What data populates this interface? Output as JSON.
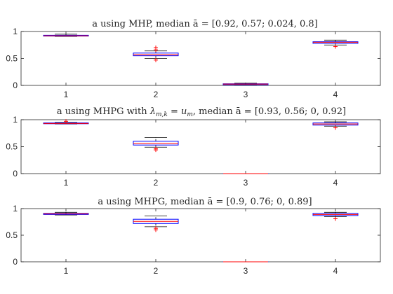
{
  "chart_data": [
    {
      "type": "box",
      "title": "a using MHP, median ā = [0.92, 0.57; 0.024, 0.8]",
      "categories": [
        "1",
        "2",
        "3",
        "4"
      ],
      "ylim": [
        0,
        1
      ],
      "yticks": [
        "0",
        "0.5",
        "1"
      ],
      "boxes": [
        {
          "whisker_low": 0.91,
          "q1": 0.915,
          "median": 0.92,
          "q3": 0.93,
          "whisker_high": 0.95,
          "outliers": []
        },
        {
          "whisker_low": 0.5,
          "q1": 0.55,
          "median": 0.57,
          "q3": 0.6,
          "whisker_high": 0.64,
          "outliers": [
            0.47,
            0.66,
            0.7
          ]
        },
        {
          "whisker_low": 0.005,
          "q1": 0.012,
          "median": 0.024,
          "q3": 0.03,
          "whisker_high": 0.04,
          "outliers": []
        },
        {
          "whisker_low": 0.75,
          "q1": 0.78,
          "median": 0.8,
          "q3": 0.81,
          "whisker_high": 0.84,
          "outliers": [
            0.72
          ]
        }
      ]
    },
    {
      "type": "box",
      "title": "a using MHPG with λm,k = um, median ā = [0.93, 0.56; 0, 0.92]",
      "title_parts": {
        "pre": "a using MHPG with ",
        "lambda": "λ",
        "lambda_sub": "m,k",
        "eq": " = ",
        "u": "u",
        "u_sub": "m",
        "post": ", median ā = [0.93, 0.56; 0, 0.92]"
      },
      "categories": [
        "1",
        "2",
        "3",
        "4"
      ],
      "ylim": [
        0,
        1
      ],
      "yticks": [
        "0",
        "0.5",
        "1"
      ],
      "boxes": [
        {
          "whisker_low": 0.92,
          "q1": 0.925,
          "median": 0.93,
          "q3": 0.94,
          "whisker_high": 0.95,
          "outliers": [
            0.97
          ]
        },
        {
          "whisker_low": 0.49,
          "q1": 0.53,
          "median": 0.56,
          "q3": 0.6,
          "whisker_high": 0.67,
          "outliers": [
            0.44,
            0.46
          ]
        },
        {
          "whisker_low": 0,
          "q1": 0,
          "median": 0,
          "q3": 0,
          "whisker_high": 0,
          "outliers": []
        },
        {
          "whisker_low": 0.88,
          "q1": 0.9,
          "median": 0.92,
          "q3": 0.94,
          "whisker_high": 0.96,
          "outliers": [
            0.85
          ]
        }
      ]
    },
    {
      "type": "box",
      "title": "a using MHPG, median ā = [0.9, 0.76; 0, 0.89]",
      "categories": [
        "1",
        "2",
        "3",
        "4"
      ],
      "ylim": [
        0,
        1
      ],
      "yticks": [
        "0",
        "0.5",
        "1"
      ],
      "boxes": [
        {
          "whisker_low": 0.88,
          "q1": 0.89,
          "median": 0.9,
          "q3": 0.91,
          "whisker_high": 0.93,
          "outliers": []
        },
        {
          "whisker_low": 0.66,
          "q1": 0.72,
          "median": 0.76,
          "q3": 0.8,
          "whisker_high": 0.86,
          "outliers": [
            0.6,
            0.63
          ]
        },
        {
          "whisker_low": 0,
          "q1": 0,
          "median": 0,
          "q3": 0,
          "whisker_high": 0,
          "outliers": []
        },
        {
          "whisker_low": 0.85,
          "q1": 0.87,
          "median": 0.89,
          "q3": 0.91,
          "whisker_high": 0.93,
          "outliers": [
            0.81
          ]
        }
      ]
    }
  ],
  "colors": {
    "box": "#0000ff",
    "median": "#ff0000",
    "whisker": "#000000",
    "outlier": "#ff0000",
    "axis": "#262626"
  }
}
